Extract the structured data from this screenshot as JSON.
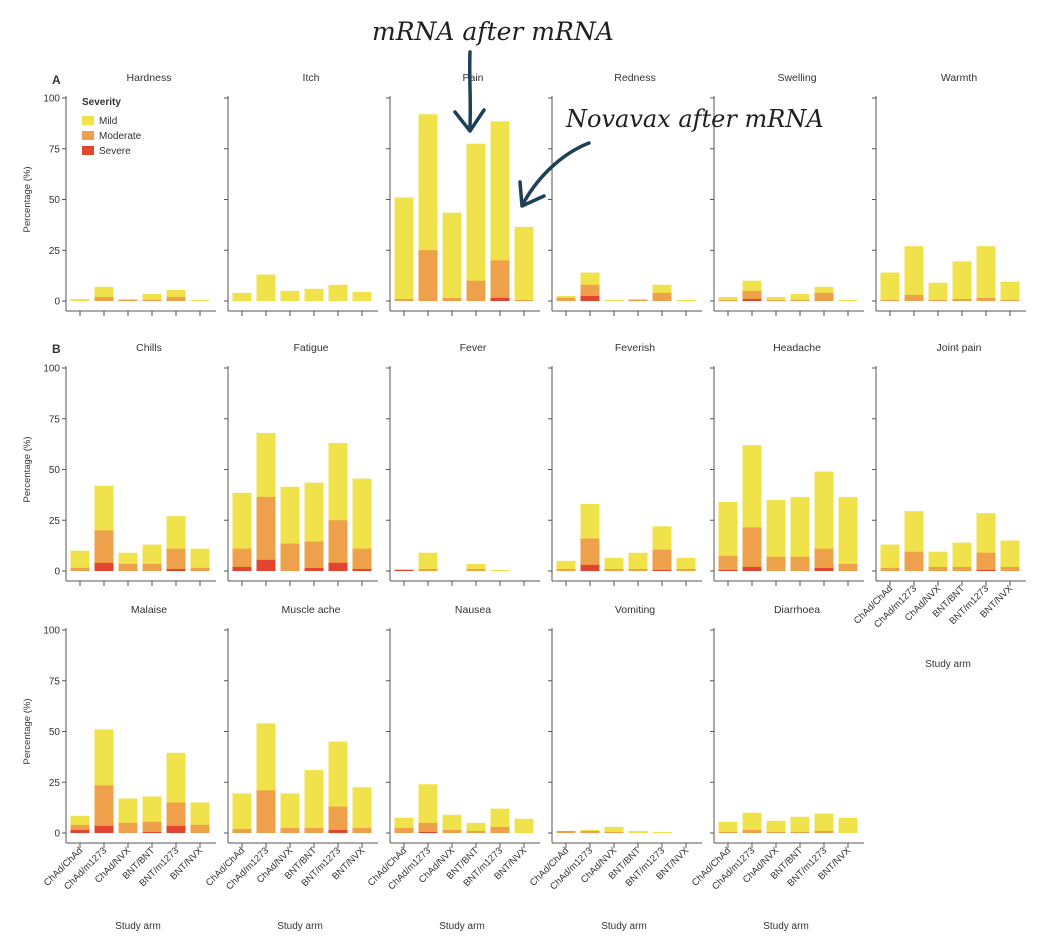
{
  "figure": {
    "axis_label_x": "Study arm",
    "axis_label_y": "Percentage (%)",
    "panel_letters": [
      "A",
      "B"
    ],
    "legend": {
      "title": "Severity",
      "items": [
        {
          "label": "Mild",
          "color": "#F0E24A"
        },
        {
          "label": "Moderate",
          "color": "#EFA04A"
        },
        {
          "label": "Severe",
          "color": "#E2452F"
        }
      ]
    },
    "annotations": {
      "mrna_after_mrna": "mRNA after mRNA",
      "novavax_after_mrna": "Novavax after mRNA"
    },
    "colors": {
      "mild": "#F0E24A",
      "moderate": "#EFA04A",
      "severe": "#E2452F",
      "axis": "#555555",
      "arrow": "#1E4055"
    }
  },
  "chart_data": {
    "type": "bar",
    "stacked": true,
    "categories": [
      "ChAd/ChAd",
      "ChAd/m1273",
      "ChAd/NVX",
      "BNT/BNT",
      "BNT/m1273",
      "BNT/NVX"
    ],
    "series_names": [
      "Severe",
      "Moderate",
      "Mild"
    ],
    "ylim": [
      0,
      100
    ],
    "yticks": [
      0,
      25,
      50,
      75,
      100
    ],
    "panels": [
      {
        "title": "Hardness",
        "severe": [
          0,
          0,
          0,
          0,
          0,
          0
        ],
        "moderate": [
          0,
          2,
          0.5,
          0.5,
          2,
          0
        ],
        "mild": [
          1,
          7,
          1,
          3.5,
          5.5,
          0.5
        ]
      },
      {
        "title": "Itch",
        "severe": [
          0,
          0,
          0,
          0,
          0,
          0
        ],
        "moderate": [
          0,
          0,
          0,
          0,
          0,
          0
        ],
        "mild": [
          4,
          13,
          5,
          6,
          8,
          4.5
        ]
      },
      {
        "title": "Pain",
        "severe": [
          0,
          0,
          0,
          0,
          1.5,
          0
        ],
        "moderate": [
          1,
          25,
          1.5,
          10,
          20,
          0.5
        ],
        "mild": [
          51,
          92,
          43.5,
          77.5,
          88.5,
          36.5
        ]
      },
      {
        "title": "Redness",
        "severe": [
          0,
          2.5,
          0,
          0,
          0,
          0
        ],
        "moderate": [
          1.5,
          8,
          0,
          0.5,
          4,
          0
        ],
        "mild": [
          2.5,
          14,
          0.5,
          1,
          8,
          0.5
        ]
      },
      {
        "title": "Swelling",
        "severe": [
          0,
          1,
          0,
          0,
          0,
          0
        ],
        "moderate": [
          0.5,
          5,
          0.5,
          0.5,
          4,
          0
        ],
        "mild": [
          2,
          10,
          2,
          3.5,
          7,
          0.5
        ]
      },
      {
        "title": "Warmth",
        "severe": [
          0,
          0,
          0,
          0,
          0,
          0
        ],
        "moderate": [
          0.5,
          3,
          0.5,
          1,
          1.5,
          0.5
        ],
        "mild": [
          14,
          27,
          9,
          19.5,
          27,
          9.5
        ]
      },
      {
        "title": "Chills",
        "severe": [
          0,
          4,
          0,
          0,
          1,
          0
        ],
        "moderate": [
          1.5,
          20,
          3.5,
          3.5,
          11,
          1.5
        ],
        "mild": [
          10,
          42,
          9,
          13,
          27,
          11
        ]
      },
      {
        "title": "Fatigue",
        "severe": [
          2,
          5.5,
          0,
          1.5,
          4,
          1
        ],
        "moderate": [
          11,
          36.5,
          13.5,
          14.5,
          25,
          11
        ],
        "mild": [
          38.5,
          68,
          41.5,
          43.5,
          63,
          45.5
        ]
      },
      {
        "title": "Fever",
        "severe": [
          0.5,
          0,
          0,
          0,
          0,
          0
        ],
        "moderate": [
          0.5,
          1,
          0,
          1,
          0,
          0
        ],
        "mild": [
          1,
          9,
          0,
          3.5,
          0.5,
          0
        ]
      },
      {
        "title": "Feverish",
        "severe": [
          0,
          3,
          0,
          0,
          0.5,
          0
        ],
        "moderate": [
          1,
          16,
          1,
          1,
          10.5,
          1
        ],
        "mild": [
          5,
          33,
          6.5,
          9,
          22,
          6.5
        ]
      },
      {
        "title": "Headache",
        "severe": [
          0.5,
          2,
          0,
          0,
          1.5,
          0
        ],
        "moderate": [
          7.5,
          21.5,
          7,
          7,
          11,
          3.5
        ],
        "mild": [
          34,
          62,
          35,
          36.5,
          49,
          36.5
        ]
      },
      {
        "title": "Joint pain",
        "severe": [
          0,
          0,
          0,
          0,
          0.5,
          0
        ],
        "moderate": [
          1.5,
          9.5,
          2,
          2,
          9,
          2
        ],
        "mild": [
          13,
          29.5,
          9.5,
          14,
          28.5,
          15
        ]
      },
      {
        "title": "Malaise",
        "severe": [
          1.5,
          3.5,
          0,
          0.5,
          3.5,
          0
        ],
        "moderate": [
          4,
          23.5,
          5,
          5.5,
          15,
          4
        ],
        "mild": [
          8.5,
          51,
          17,
          18,
          39.5,
          15
        ]
      },
      {
        "title": "Muscle ache",
        "severe": [
          0,
          0,
          0,
          0,
          1.5,
          0
        ],
        "moderate": [
          2,
          21,
          2.5,
          2.5,
          13,
          2.5
        ],
        "mild": [
          19.5,
          54,
          19.5,
          31,
          45,
          22.5
        ]
      },
      {
        "title": "Nausea",
        "severe": [
          0,
          0.5,
          0,
          0,
          0,
          0
        ],
        "moderate": [
          2.5,
          5,
          1.5,
          1,
          3,
          0
        ],
        "mild": [
          7.5,
          24,
          9,
          5,
          12,
          7
        ]
      },
      {
        "title": "Vomiting",
        "severe": [
          0,
          0,
          0,
          0,
          0,
          0
        ],
        "moderate": [
          1,
          1,
          0.5,
          0,
          0,
          0
        ],
        "mild": [
          1,
          1.5,
          3,
          1,
          0.5,
          0
        ]
      },
      {
        "title": "Diarrhoea",
        "severe": [
          0,
          0,
          0,
          0,
          0,
          0
        ],
        "moderate": [
          0.5,
          1.5,
          0.5,
          0.5,
          1,
          0
        ],
        "mild": [
          5.5,
          10,
          6,
          8,
          9.5,
          7.5
        ]
      }
    ]
  }
}
